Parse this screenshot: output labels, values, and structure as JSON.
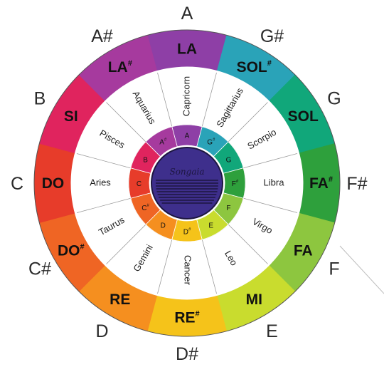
{
  "colors": {
    "background": "#ffffff",
    "white_ring": "#ffffff",
    "ring_outline": "#555555",
    "logo_fill": "#3e2f8c",
    "logo_dark": "#1d1640"
  },
  "segments": [
    {
      "outer_label": "A",
      "note": "LA",
      "sharp": false,
      "zodiac": "Capricorn",
      "inner": "A",
      "color": "#8e3fa6"
    },
    {
      "outer_label": "G#",
      "note": "SOL",
      "sharp": true,
      "zodiac": "Sagittarius",
      "inner": "G",
      "color": "#2aa3b8"
    },
    {
      "outer_label": "G",
      "note": "SOL",
      "sharp": false,
      "zodiac": "Scorpio",
      "inner": "G",
      "color": "#11a77a"
    },
    {
      "outer_label": "F#",
      "note": "FA",
      "sharp": true,
      "zodiac": "Libra",
      "inner": "F",
      "color": "#2ea03c"
    },
    {
      "outer_label": "F",
      "note": "FA",
      "sharp": false,
      "zodiac": "Virgo",
      "inner": "F",
      "color": "#8dc63f"
    },
    {
      "outer_label": "E",
      "note": "MI",
      "sharp": false,
      "zodiac": "Leo",
      "inner": "E",
      "color": "#c9dc2e"
    },
    {
      "outer_label": "D#",
      "note": "RE",
      "sharp": true,
      "zodiac": "Cancer",
      "inner": "D",
      "color": "#f5c31a"
    },
    {
      "outer_label": "D",
      "note": "RE",
      "sharp": false,
      "zodiac": "Gemini",
      "inner": "D",
      "color": "#f58f1f"
    },
    {
      "outer_label": "C#",
      "note": "DO",
      "sharp": true,
      "zodiac": "Taurus",
      "inner": "C",
      "color": "#ef6524"
    },
    {
      "outer_label": "C",
      "note": "DO",
      "sharp": false,
      "zodiac": "Aries",
      "inner": "C",
      "color": "#e73c2a"
    },
    {
      "outer_label": "B",
      "note": "SI",
      "sharp": false,
      "zodiac": "Pisces",
      "inner": "B",
      "color": "#e0245e"
    },
    {
      "outer_label": "A#",
      "note": "LA",
      "sharp": true,
      "zodiac": "Aquarius",
      "inner": "A",
      "color": "#a63a9e"
    }
  ],
  "sharp_symbol": "#",
  "logo": {
    "text": "Songaia"
  }
}
